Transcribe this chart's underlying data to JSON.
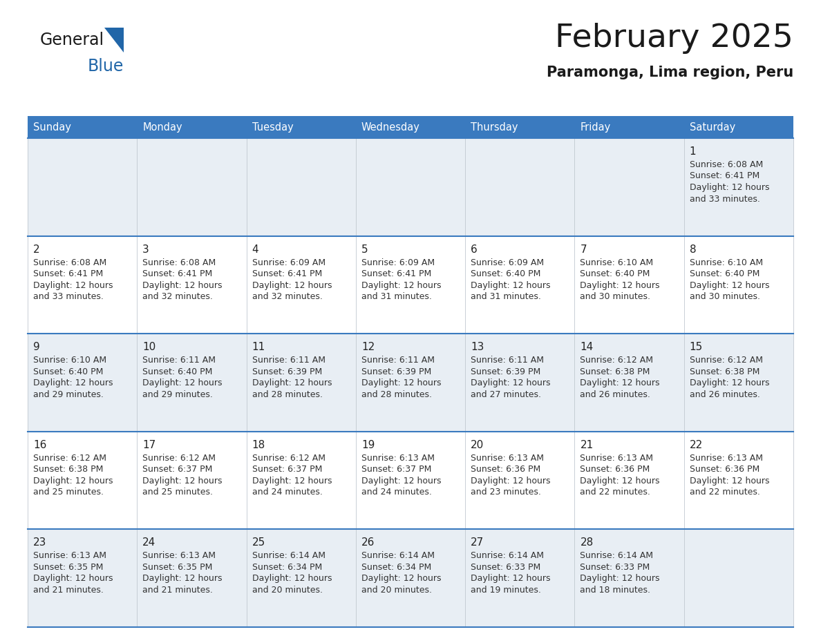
{
  "title": "February 2025",
  "subtitle": "Paramonga, Lima region, Peru",
  "header_color": "#3a7abf",
  "header_text_color": "#ffffff",
  "day_names": [
    "Sunday",
    "Monday",
    "Tuesday",
    "Wednesday",
    "Thursday",
    "Friday",
    "Saturday"
  ],
  "cell_bg_light": "#e8eef4",
  "cell_bg_white": "#ffffff",
  "border_color": "#3a7abf",
  "text_color": "#333333",
  "days": [
    {
      "day": 1,
      "col": 6,
      "row": 0,
      "sunrise": "6:08 AM",
      "sunset": "6:41 PM",
      "daylight": "12 hours and 33 minutes"
    },
    {
      "day": 2,
      "col": 0,
      "row": 1,
      "sunrise": "6:08 AM",
      "sunset": "6:41 PM",
      "daylight": "12 hours and 33 minutes"
    },
    {
      "day": 3,
      "col": 1,
      "row": 1,
      "sunrise": "6:08 AM",
      "sunset": "6:41 PM",
      "daylight": "12 hours and 32 minutes"
    },
    {
      "day": 4,
      "col": 2,
      "row": 1,
      "sunrise": "6:09 AM",
      "sunset": "6:41 PM",
      "daylight": "12 hours and 32 minutes"
    },
    {
      "day": 5,
      "col": 3,
      "row": 1,
      "sunrise": "6:09 AM",
      "sunset": "6:41 PM",
      "daylight": "12 hours and 31 minutes"
    },
    {
      "day": 6,
      "col": 4,
      "row": 1,
      "sunrise": "6:09 AM",
      "sunset": "6:40 PM",
      "daylight": "12 hours and 31 minutes"
    },
    {
      "day": 7,
      "col": 5,
      "row": 1,
      "sunrise": "6:10 AM",
      "sunset": "6:40 PM",
      "daylight": "12 hours and 30 minutes"
    },
    {
      "day": 8,
      "col": 6,
      "row": 1,
      "sunrise": "6:10 AM",
      "sunset": "6:40 PM",
      "daylight": "12 hours and 30 minutes"
    },
    {
      "day": 9,
      "col": 0,
      "row": 2,
      "sunrise": "6:10 AM",
      "sunset": "6:40 PM",
      "daylight": "12 hours and 29 minutes"
    },
    {
      "day": 10,
      "col": 1,
      "row": 2,
      "sunrise": "6:11 AM",
      "sunset": "6:40 PM",
      "daylight": "12 hours and 29 minutes"
    },
    {
      "day": 11,
      "col": 2,
      "row": 2,
      "sunrise": "6:11 AM",
      "sunset": "6:39 PM",
      "daylight": "12 hours and 28 minutes"
    },
    {
      "day": 12,
      "col": 3,
      "row": 2,
      "sunrise": "6:11 AM",
      "sunset": "6:39 PM",
      "daylight": "12 hours and 28 minutes"
    },
    {
      "day": 13,
      "col": 4,
      "row": 2,
      "sunrise": "6:11 AM",
      "sunset": "6:39 PM",
      "daylight": "12 hours and 27 minutes"
    },
    {
      "day": 14,
      "col": 5,
      "row": 2,
      "sunrise": "6:12 AM",
      "sunset": "6:38 PM",
      "daylight": "12 hours and 26 minutes"
    },
    {
      "day": 15,
      "col": 6,
      "row": 2,
      "sunrise": "6:12 AM",
      "sunset": "6:38 PM",
      "daylight": "12 hours and 26 minutes"
    },
    {
      "day": 16,
      "col": 0,
      "row": 3,
      "sunrise": "6:12 AM",
      "sunset": "6:38 PM",
      "daylight": "12 hours and 25 minutes"
    },
    {
      "day": 17,
      "col": 1,
      "row": 3,
      "sunrise": "6:12 AM",
      "sunset": "6:37 PM",
      "daylight": "12 hours and 25 minutes"
    },
    {
      "day": 18,
      "col": 2,
      "row": 3,
      "sunrise": "6:12 AM",
      "sunset": "6:37 PM",
      "daylight": "12 hours and 24 minutes"
    },
    {
      "day": 19,
      "col": 3,
      "row": 3,
      "sunrise": "6:13 AM",
      "sunset": "6:37 PM",
      "daylight": "12 hours and 24 minutes"
    },
    {
      "day": 20,
      "col": 4,
      "row": 3,
      "sunrise": "6:13 AM",
      "sunset": "6:36 PM",
      "daylight": "12 hours and 23 minutes"
    },
    {
      "day": 21,
      "col": 5,
      "row": 3,
      "sunrise": "6:13 AM",
      "sunset": "6:36 PM",
      "daylight": "12 hours and 22 minutes"
    },
    {
      "day": 22,
      "col": 6,
      "row": 3,
      "sunrise": "6:13 AM",
      "sunset": "6:36 PM",
      "daylight": "12 hours and 22 minutes"
    },
    {
      "day": 23,
      "col": 0,
      "row": 4,
      "sunrise": "6:13 AM",
      "sunset": "6:35 PM",
      "daylight": "12 hours and 21 minutes"
    },
    {
      "day": 24,
      "col": 1,
      "row": 4,
      "sunrise": "6:13 AM",
      "sunset": "6:35 PM",
      "daylight": "12 hours and 21 minutes"
    },
    {
      "day": 25,
      "col": 2,
      "row": 4,
      "sunrise": "6:14 AM",
      "sunset": "6:34 PM",
      "daylight": "12 hours and 20 minutes"
    },
    {
      "day": 26,
      "col": 3,
      "row": 4,
      "sunrise": "6:14 AM",
      "sunset": "6:34 PM",
      "daylight": "12 hours and 20 minutes"
    },
    {
      "day": 27,
      "col": 4,
      "row": 4,
      "sunrise": "6:14 AM",
      "sunset": "6:33 PM",
      "daylight": "12 hours and 19 minutes"
    },
    {
      "day": 28,
      "col": 5,
      "row": 4,
      "sunrise": "6:14 AM",
      "sunset": "6:33 PM",
      "daylight": "12 hours and 18 minutes"
    }
  ]
}
